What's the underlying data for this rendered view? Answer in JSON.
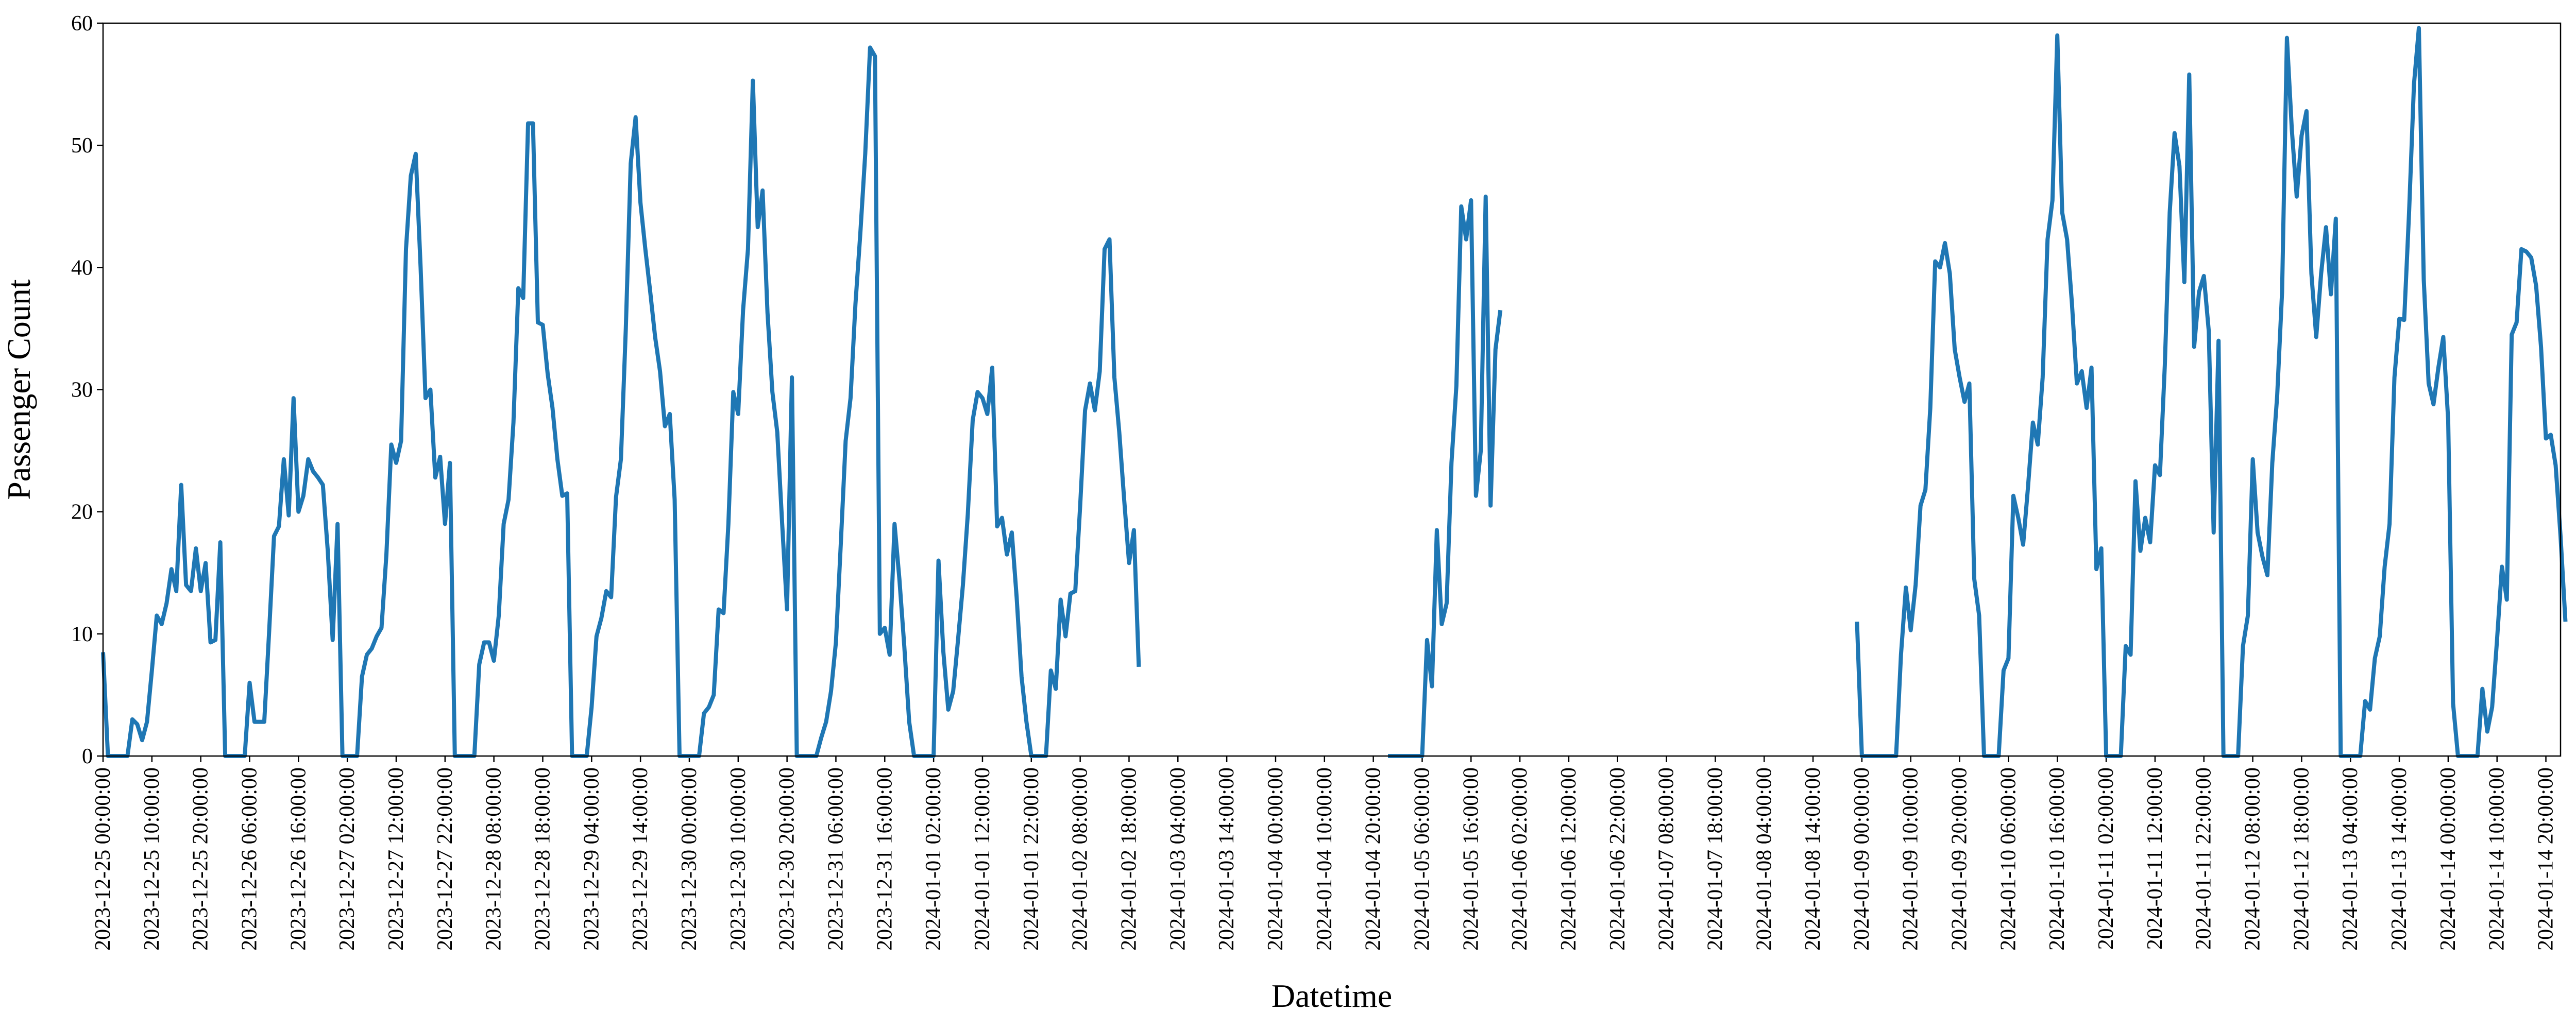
{
  "chart_data": {
    "type": "line",
    "title": "",
    "xlabel": "Datetime",
    "ylabel": "Passenger Count",
    "ylim": [
      0,
      60
    ],
    "yticks": [
      0,
      10,
      20,
      30,
      40,
      50,
      60
    ],
    "x_start": "2023-12-25 00:00:00",
    "x_end": "2024-01-14 23:00:00",
    "x_step_hours": 1,
    "xtick_labels": [
      "2023-12-25 00:00:00",
      "2023-12-25 10:00:00",
      "2023-12-25 20:00:00",
      "2023-12-26 06:00:00",
      "2023-12-26 16:00:00",
      "2023-12-27 02:00:00",
      "2023-12-27 12:00:00",
      "2023-12-27 22:00:00",
      "2023-12-28 08:00:00",
      "2023-12-28 18:00:00",
      "2023-12-29 04:00:00",
      "2023-12-29 14:00:00",
      "2023-12-30 00:00:00",
      "2023-12-30 10:00:00",
      "2023-12-30 20:00:00",
      "2023-12-31 06:00:00",
      "2023-12-31 16:00:00",
      "2024-01-01 02:00:00",
      "2024-01-01 12:00:00",
      "2024-01-01 22:00:00",
      "2024-01-02 08:00:00",
      "2024-01-02 18:00:00",
      "2024-01-03 04:00:00",
      "2024-01-03 14:00:00",
      "2024-01-04 00:00:00",
      "2024-01-04 10:00:00",
      "2024-01-04 20:00:00",
      "2024-01-05 06:00:00",
      "2024-01-05 16:00:00",
      "2024-01-06 02:00:00",
      "2024-01-06 12:00:00",
      "2024-01-06 22:00:00",
      "2024-01-07 08:00:00",
      "2024-01-07 18:00:00",
      "2024-01-08 04:00:00",
      "2024-01-08 14:00:00",
      "2024-01-09 00:00:00",
      "2024-01-09 10:00:00",
      "2024-01-09 20:00:00",
      "2024-01-10 06:00:00",
      "2024-01-10 16:00:00",
      "2024-01-11 02:00:00",
      "2024-01-11 12:00:00",
      "2024-01-11 22:00:00",
      "2024-01-12 08:00:00",
      "2024-01-12 18:00:00",
      "2024-01-13 04:00:00",
      "2024-01-13 14:00:00",
      "2024-01-14 00:00:00",
      "2024-01-14 10:00:00",
      "2024-01-14 20:00:00"
    ],
    "grid": false,
    "legend": "none",
    "line_color": "#1f77b4",
    "series": [
      {
        "segments": [
          {
            "start": "2023-12-25 00:00:00",
            "values": [
              8.5,
              0,
              0,
              0,
              0,
              0,
              3,
              2.6,
              1.3,
              2.8,
              7,
              11.5,
              10.8,
              12.5,
              15.3,
              13.5,
              22.2,
              14,
              13.5,
              17,
              13.5,
              15.8,
              9.3,
              9.5,
              17.5,
              0,
              0,
              0,
              0,
              0,
              6,
              2.8,
              2.8,
              2.8,
              10.2,
              18,
              18.8,
              24.3,
              19.7,
              29.3,
              20,
              21.3,
              24.3,
              23.3,
              22.8,
              22.2,
              16.8,
              9.5,
              19,
              0,
              0,
              0,
              0,
              6.5,
              8.3,
              8.8,
              9.8,
              10.5,
              16.5,
              25.5,
              24,
              25.8,
              41.5,
              47.5,
              49.3,
              40,
              29.3,
              30,
              22.8,
              24.5,
              19,
              24,
              0,
              0,
              0,
              0,
              0,
              7.5,
              9.3,
              9.3,
              7.8,
              11.5,
              19,
              21,
              27.3,
              38.3,
              37.5,
              51.8,
              51.8,
              35.5,
              35.3,
              31.3,
              28.5,
              24.3,
              21.3,
              21.5,
              0,
              0,
              0,
              0,
              4,
              9.8,
              11.3,
              13.5,
              13,
              21.2,
              24.3,
              35,
              48.5,
              52.3,
              45.3,
              41.5,
              38,
              34.3,
              31.5,
              27,
              28,
              21,
              0,
              0,
              0,
              0,
              0,
              3.5,
              4,
              5,
              12,
              11.7,
              19,
              29.8,
              28,
              36.5,
              41.5,
              55.3,
              43.3,
              46.3,
              36.3,
              29.8,
              26.5,
              19,
              12,
              31,
              0,
              0,
              0,
              0,
              0,
              1.5,
              2.8,
              5.3,
              9.3,
              17.3,
              25.8,
              29.3,
              37,
              42.8,
              49.3,
              58,
              57.3,
              10,
              10.5,
              8.3,
              19,
              14.5,
              9,
              2.8,
              0,
              0,
              0,
              0,
              0,
              16,
              8.5,
              3.8,
              5.3,
              9.5,
              14,
              19.8,
              27.5,
              29.8,
              29.3,
              28,
              31.8,
              18.8,
              19.5,
              16.5,
              18.3,
              13,
              6.5,
              2.8,
              0,
              0,
              0,
              0,
              7,
              5.5,
              12.8,
              9.8,
              13.3,
              13.5,
              20.5,
              28.3,
              30.5,
              28.3,
              31.5,
              41.5,
              42.3,
              31,
              26.5,
              21,
              15.8,
              18.5,
              7.3
            ]
          },
          {
            "start": "2024-01-04 23:00:00",
            "values": [
              0,
              0,
              0,
              0,
              0,
              0,
              0,
              0,
              9.5,
              5.7,
              18.5,
              10.8,
              12.5,
              24,
              30.3,
              45,
              42.3,
              45.5,
              21.3,
              25,
              45.8,
              20.5,
              33.3,
              36.5
            ]
          },
          {
            "start": "2024-01-08 23:00:00",
            "values": [
              11,
              0,
              0,
              0,
              0,
              0,
              0,
              0,
              0,
              8.3,
              13.8,
              10.3,
              14,
              20.5,
              21.8,
              28.5,
              40.5,
              40,
              42,
              39.5,
              33.3,
              31,
              29,
              30.5,
              14.5,
              11.5,
              0,
              0,
              0,
              0,
              7,
              8,
              21.3,
              19.5,
              17.3,
              22,
              27.3,
              25.5,
              31,
              42.3,
              45.5,
              59,
              44.5,
              42.3,
              37,
              30.5,
              31.5,
              28.5,
              31.8,
              15.3,
              17,
              0,
              0,
              0,
              0,
              9,
              8.3,
              22.5,
              16.8,
              19.5,
              17.5,
              23.8,
              23,
              32,
              44.5,
              51,
              48.3,
              38.8,
              55.8,
              33.5,
              38,
              39.3,
              34.8,
              18.3,
              34,
              0,
              0,
              0,
              0,
              9,
              11.5,
              24.3,
              18.3,
              16.3,
              14.8,
              24,
              29.5,
              38,
              58.8,
              51.3,
              45.8,
              50.8,
              52.8,
              39.5,
              34.3,
              39.5,
              43.3,
              37.8,
              44,
              0,
              0,
              0,
              0,
              0,
              4.5,
              3.8,
              8,
              9.8,
              15.5,
              19,
              31,
              35.8,
              35.7,
              44.5,
              55,
              59.6,
              39,
              30.5,
              28.8,
              31.8,
              34.3,
              27.5,
              4.3,
              0,
              0,
              0,
              0,
              0,
              5.5,
              2,
              4,
              9.5,
              15.5,
              12.8,
              34.5,
              35.5,
              41.5,
              41.3,
              40.8,
              38.5,
              33.5,
              26,
              26.3,
              23.8,
              18,
              11
            ]
          }
        ]
      }
    ]
  }
}
